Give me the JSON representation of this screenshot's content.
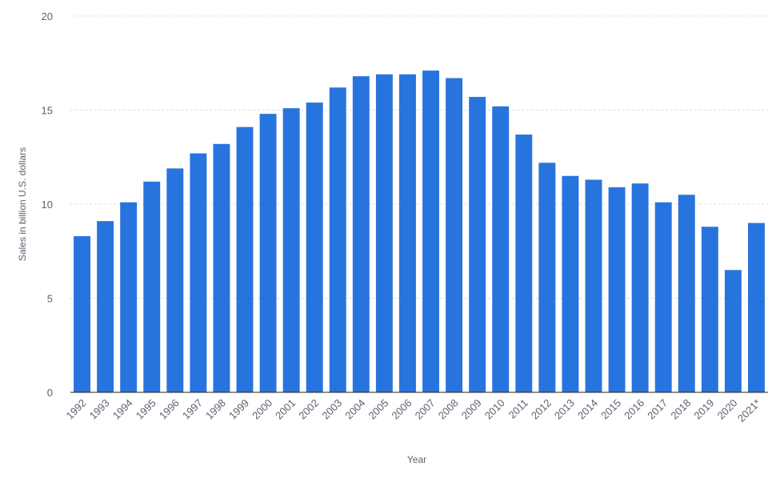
{
  "chart_data": {
    "type": "bar",
    "y_label": "Sales in billion U.S. dollars",
    "x_label": "Year",
    "categories": [
      "1992",
      "1993",
      "1994",
      "1995",
      "1996",
      "1997",
      "1998",
      "1999",
      "2000",
      "2001",
      "2002",
      "2003",
      "2004",
      "2005",
      "2006",
      "2007",
      "2008",
      "2009",
      "2010",
      "2011",
      "2012",
      "2013",
      "2014",
      "2015",
      "2016",
      "2017",
      "2018",
      "2019",
      "2020",
      "2021*"
    ],
    "values": [
      8.3,
      9.1,
      10.1,
      11.2,
      11.9,
      12.7,
      13.2,
      14.1,
      14.8,
      15.1,
      15.4,
      16.2,
      16.8,
      16.9,
      16.9,
      17.1,
      16.7,
      15.7,
      15.2,
      13.7,
      12.2,
      11.5,
      11.3,
      10.9,
      11.1,
      10.1,
      10.5,
      8.8,
      6.5,
      9.0
    ],
    "color": "#2874de",
    "ylim": [
      0,
      20
    ],
    "yticks": [
      0,
      5,
      10,
      15,
      20
    ],
    "grid": true
  }
}
